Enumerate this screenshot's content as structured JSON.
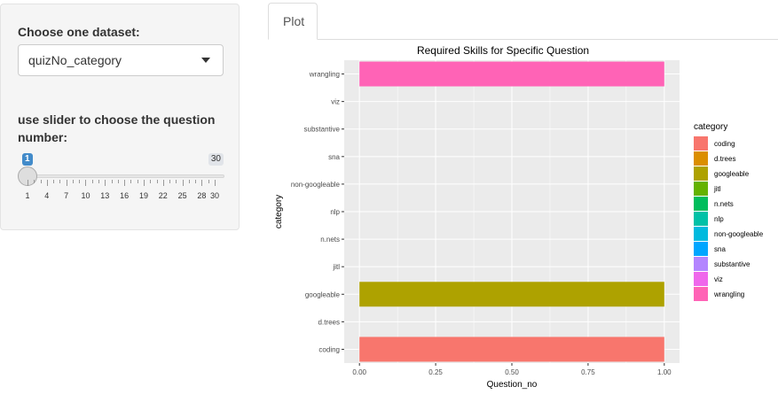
{
  "sidebar": {
    "dataset_label": "Choose one dataset:",
    "dataset_selected": "quizNo_category",
    "slider_label_line1": "use slider to choose the question",
    "slider_label_line2": "number:",
    "slider": {
      "min": 1,
      "max": 30,
      "value": 1,
      "value_text": "1",
      "max_text": "30",
      "tick_labels": [
        "1",
        "4",
        "7",
        "10",
        "13",
        "16",
        "19",
        "22",
        "25",
        "28",
        "30"
      ]
    }
  },
  "tabs": [
    {
      "label": "Plot",
      "active": true
    }
  ],
  "chart_data": {
    "type": "bar",
    "orientation": "horizontal",
    "title": "Required Skills for Specific Question",
    "xlabel": "Question_no",
    "ylabel": "category",
    "categories": [
      "coding",
      "d.trees",
      "googleable",
      "jitl",
      "n.nets",
      "nlp",
      "non-googleable",
      "sna",
      "substantive",
      "viz",
      "wrangling"
    ],
    "values": [
      1,
      0,
      1,
      0,
      0,
      0,
      0,
      0,
      0,
      0,
      1
    ],
    "colors": [
      "#F8766D",
      "#DB8E00",
      "#AEA200",
      "#64B200",
      "#00BD5C",
      "#00C1A7",
      "#00BADE",
      "#00A6FF",
      "#B385FF",
      "#EF67EB",
      "#FF63B6"
    ],
    "xlim": [
      0,
      1
    ],
    "x_ticks": [
      0,
      0.25,
      0.5,
      0.75,
      1
    ],
    "x_tick_labels": [
      "0.00",
      "0.25",
      "0.50",
      "0.75",
      "1.00"
    ],
    "grid": true,
    "background": "#EBEBEB",
    "legend": {
      "title": "category",
      "position": "right",
      "entries": [
        "coding",
        "d.trees",
        "googleable",
        "jitl",
        "n.nets",
        "nlp",
        "non-googleable",
        "sna",
        "substantive",
        "viz",
        "wrangling"
      ]
    }
  }
}
